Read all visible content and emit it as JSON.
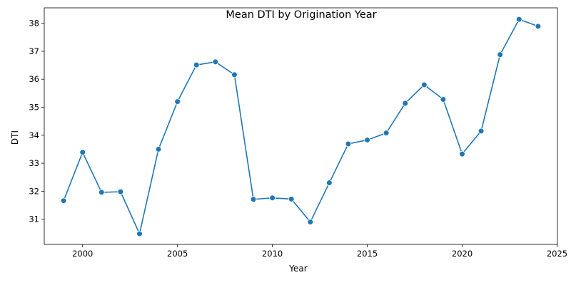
{
  "chart_data": {
    "type": "line",
    "title": "Mean DTI by Origination Year",
    "xlabel": "Year",
    "ylabel": "DTI",
    "xlim": [
      1997.98,
      2025.02
    ],
    "ylim": [
      30.1,
      38.55
    ],
    "x_ticks": [
      "2000",
      "2005",
      "2010",
      "2015",
      "2020",
      "2025"
    ],
    "y_ticks": [
      "31",
      "32",
      "33",
      "34",
      "35",
      "36",
      "37",
      "38"
    ],
    "grid": false,
    "legend": "none",
    "series": [
      {
        "color": "#1f77b4",
        "x": [
          1999,
          2000,
          2001,
          2002,
          2003,
          2004,
          2005,
          2006,
          2007,
          2008,
          2009,
          2010,
          2011,
          2012,
          2013,
          2014,
          2015,
          2016,
          2017,
          2018,
          2019,
          2020,
          2021,
          2022,
          2023,
          2024
        ],
        "y": [
          31.66,
          33.39,
          31.96,
          31.98,
          30.48,
          33.5,
          35.2,
          36.51,
          36.62,
          36.16,
          31.71,
          31.76,
          31.72,
          30.9,
          32.3,
          33.69,
          33.83,
          34.08,
          35.14,
          35.8,
          35.28,
          33.33,
          34.15,
          36.88,
          38.14,
          37.89
        ]
      }
    ]
  }
}
